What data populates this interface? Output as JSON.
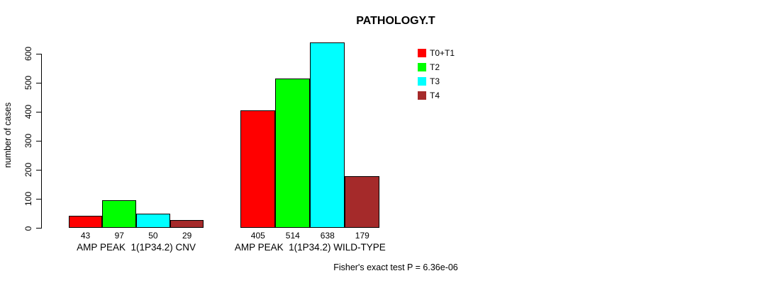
{
  "chart_data": {
    "type": "bar",
    "title": "PATHOLOGY.T",
    "ylabel": "number of cases",
    "xlabel": "",
    "ylim": [
      0,
      600
    ],
    "yticks": [
      0,
      100,
      200,
      300,
      400,
      500,
      600
    ],
    "grid": false,
    "bar_borders": "#000000",
    "legend_position": "top-right-inside",
    "categories": [
      "AMP PEAK  1(1P34.2) CNV",
      "AMP PEAK  1(1P34.2) WILD-TYPE"
    ],
    "series": [
      {
        "name": "T0+T1",
        "color": "#FF0000",
        "values": [
          43,
          405
        ]
      },
      {
        "name": "T2",
        "color": "#00FF00",
        "values": [
          97,
          514
        ]
      },
      {
        "name": "T3",
        "color": "#00FFFF",
        "values": [
          50,
          638
        ]
      },
      {
        "name": "T4",
        "color": "#A52A2A",
        "values": [
          29,
          179
        ]
      }
    ],
    "annotation": "Fisher's exact test P = 6.36e-06"
  }
}
